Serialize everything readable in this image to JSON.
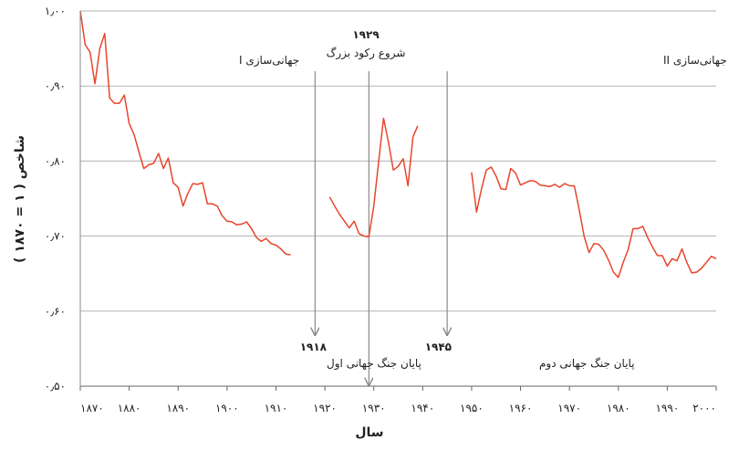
{
  "chart_data": {
    "type": "line",
    "title": "",
    "xlabel": "سال",
    "ylabel": "شاخص ( ۱ = ۱۸۷۰ )",
    "xlim": [
      1870,
      2000
    ],
    "ylim": [
      0.5,
      1.0
    ],
    "grid": true,
    "x_ticks": [
      1870,
      1880,
      1890,
      1900,
      1910,
      1920,
      1930,
      1940,
      1950,
      1960,
      1970,
      1980,
      1990,
      2000
    ],
    "x_tick_labels": [
      "۱۸۷۰",
      "۱۸۸۰",
      "۱۸۹۰",
      "۱۹۰۰",
      "۱۹۱۰",
      "۱۹۲۰",
      "۱۹۳۰",
      "۱۹۴۰",
      "۱۹۵۰",
      "۱۹۶۰",
      "۱۹۷۰",
      "۱۹۸۰",
      "۱۹۹۰",
      "۲۰۰۰"
    ],
    "y_ticks": [
      0.5,
      0.6,
      0.7,
      0.8,
      0.9,
      1.0
    ],
    "y_tick_labels": [
      "۰٫۵۰",
      "۰٫۶۰",
      "۰٫۷۰",
      "۰٫۸۰",
      "۰٫۹۰",
      "۱٫۰۰"
    ],
    "line_color": "#e8452c",
    "grid_color": "#b3b3b3",
    "series": [
      {
        "segments": [
          [
            [
              1870,
              1.0
            ],
            [
              1871,
              0.955
            ],
            [
              1872,
              0.945
            ],
            [
              1873,
              0.903
            ],
            [
              1874,
              0.95
            ],
            [
              1875,
              0.97
            ],
            [
              1876,
              0.884
            ],
            [
              1877,
              0.877
            ],
            [
              1878,
              0.877
            ],
            [
              1879,
              0.888
            ],
            [
              1880,
              0.85
            ],
            [
              1881,
              0.835
            ],
            [
              1882,
              0.812
            ],
            [
              1883,
              0.79
            ],
            [
              1884,
              0.795
            ],
            [
              1885,
              0.797
            ],
            [
              1886,
              0.81
            ],
            [
              1887,
              0.79
            ],
            [
              1888,
              0.804
            ],
            [
              1889,
              0.771
            ],
            [
              1890,
              0.765
            ],
            [
              1891,
              0.74
            ],
            [
              1892,
              0.757
            ],
            [
              1893,
              0.77
            ],
            [
              1894,
              0.769
            ],
            [
              1895,
              0.771
            ],
            [
              1896,
              0.743
            ],
            [
              1897,
              0.743
            ],
            [
              1898,
              0.74
            ],
            [
              1899,
              0.727
            ],
            [
              1900,
              0.72
            ],
            [
              1901,
              0.719
            ],
            [
              1902,
              0.715
            ],
            [
              1903,
              0.716
            ],
            [
              1904,
              0.719
            ],
            [
              1905,
              0.71
            ],
            [
              1906,
              0.698
            ],
            [
              1907,
              0.693
            ],
            [
              1908,
              0.697
            ],
            [
              1909,
              0.69
            ],
            [
              1910,
              0.688
            ],
            [
              1911,
              0.683
            ],
            [
              1912,
              0.676
            ],
            [
              1913,
              0.675
            ]
          ],
          [
            [
              1921,
              0.752
            ],
            [
              1922,
              0.74
            ],
            [
              1923,
              0.729
            ],
            [
              1924,
              0.72
            ],
            [
              1925,
              0.711
            ],
            [
              1926,
              0.72
            ],
            [
              1927,
              0.703
            ],
            [
              1928,
              0.7
            ],
            [
              1929,
              0.699
            ],
            [
              1930,
              0.74
            ],
            [
              1931,
              0.8
            ],
            [
              1932,
              0.857
            ],
            [
              1933,
              0.825
            ],
            [
              1934,
              0.788
            ],
            [
              1935,
              0.793
            ],
            [
              1936,
              0.803
            ],
            [
              1937,
              0.767
            ],
            [
              1938,
              0.832
            ],
            [
              1939,
              0.847
            ]
          ],
          [
            [
              1950,
              0.785
            ],
            [
              1951,
              0.732
            ],
            [
              1952,
              0.762
            ],
            [
              1953,
              0.788
            ],
            [
              1954,
              0.792
            ],
            [
              1955,
              0.78
            ],
            [
              1956,
              0.763
            ],
            [
              1957,
              0.762
            ],
            [
              1958,
              0.79
            ],
            [
              1959,
              0.784
            ],
            [
              1960,
              0.768
            ],
            [
              1961,
              0.771
            ],
            [
              1962,
              0.774
            ],
            [
              1963,
              0.773
            ],
            [
              1964,
              0.768
            ],
            [
              1965,
              0.767
            ],
            [
              1966,
              0.766
            ],
            [
              1967,
              0.769
            ],
            [
              1968,
              0.765
            ],
            [
              1969,
              0.77
            ],
            [
              1970,
              0.767
            ],
            [
              1971,
              0.767
            ],
            [
              1972,
              0.735
            ],
            [
              1973,
              0.7
            ],
            [
              1974,
              0.678
            ],
            [
              1975,
              0.69
            ],
            [
              1976,
              0.689
            ],
            [
              1977,
              0.681
            ],
            [
              1978,
              0.668
            ],
            [
              1979,
              0.652
            ],
            [
              1980,
              0.645
            ],
            [
              1981,
              0.665
            ],
            [
              1982,
              0.682
            ],
            [
              1983,
              0.71
            ],
            [
              1984,
              0.71
            ],
            [
              1985,
              0.713
            ],
            [
              1986,
              0.698
            ],
            [
              1987,
              0.685
            ],
            [
              1988,
              0.674
            ],
            [
              1989,
              0.674
            ],
            [
              1990,
              0.66
            ],
            [
              1991,
              0.67
            ],
            [
              1992,
              0.667
            ],
            [
              1993,
              0.683
            ],
            [
              1994,
              0.665
            ],
            [
              1995,
              0.651
            ],
            [
              1996,
              0.652
            ],
            [
              1997,
              0.657
            ],
            [
              1998,
              0.665
            ],
            [
              1999,
              0.673
            ],
            [
              2000,
              0.67
            ]
          ]
        ]
      }
    ],
    "annotations": [
      {
        "label": "جهانی‌سازی I"
      },
      {
        "label": "جهانی‌سازی II"
      },
      {
        "year": 1918,
        "year_label": "۱۹۱۸",
        "text": "پایان جنگ جهانی اول",
        "text_position": "below"
      },
      {
        "year": 1929,
        "year_label": "۱۹۲۹",
        "text": "شروع رکود بزرگ",
        "text_position": "above"
      },
      {
        "year": 1945,
        "year_label": "۱۹۴۵",
        "text": "پایان جنگ جهانی دوم",
        "text_position": "below"
      }
    ]
  }
}
